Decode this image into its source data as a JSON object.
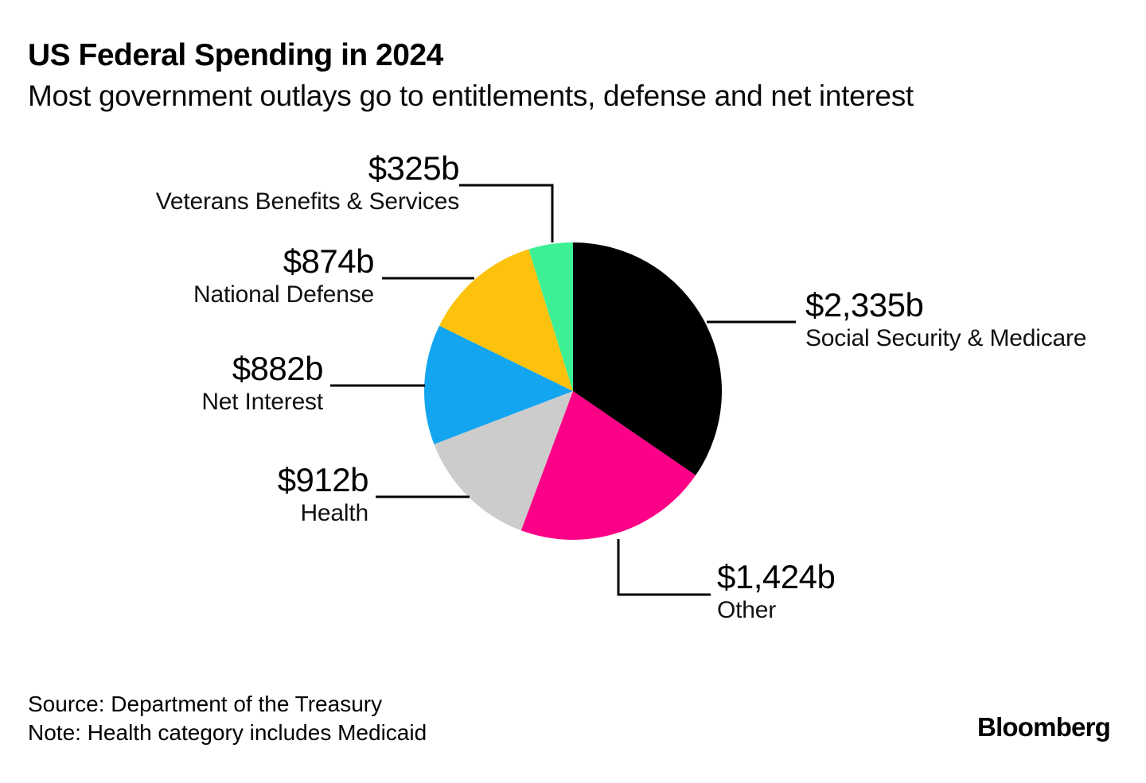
{
  "chart_data": {
    "type": "pie",
    "title": "US Federal Spending in 2024",
    "subtitle": "Most government outlays go to entitlements, defense and net interest",
    "direction": "clockwise",
    "start_angle_deg": 0,
    "slices": [
      {
        "label": "Social Security & Medicare",
        "value": 2335,
        "value_label": "$2,335b",
        "color": "#000000"
      },
      {
        "label": "Other",
        "value": 1424,
        "value_label": "$1,424b",
        "color": "#FC0087"
      },
      {
        "label": "Health",
        "value": 912,
        "value_label": "$912b",
        "color": "#CCCCCC"
      },
      {
        "label": "Net Interest",
        "value": 882,
        "value_label": "$882b",
        "color": "#14A5F0"
      },
      {
        "label": "National Defense",
        "value": 874,
        "value_label": "$874b",
        "color": "#FDC20D"
      },
      {
        "label": "Veterans Benefits & Services",
        "value": 325,
        "value_label": "$325b",
        "color": "#3EF095"
      }
    ]
  },
  "footer": {
    "source": "Source: Department of the Treasury",
    "note": "Note: Health category includes Medicaid",
    "brand": "Bloomberg"
  }
}
